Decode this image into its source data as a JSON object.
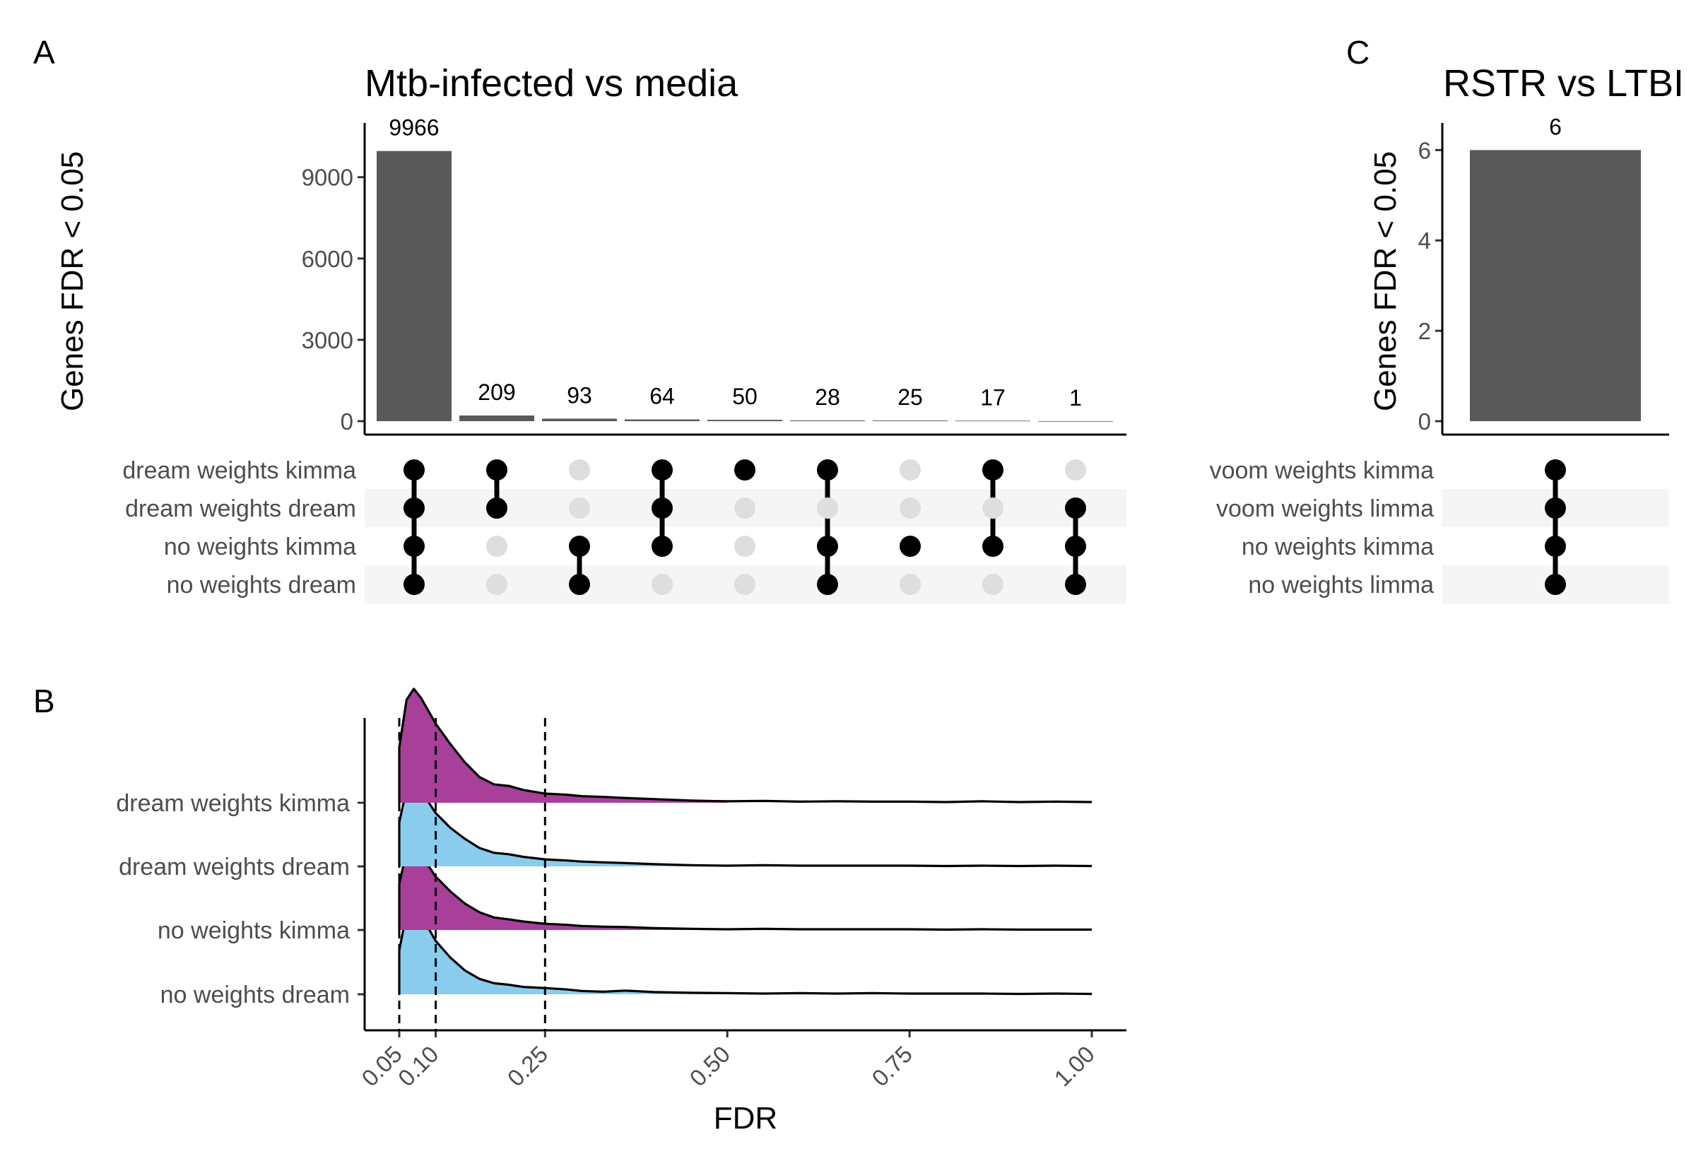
{
  "panels": {
    "A": {
      "letter": "A",
      "title": "Mtb-infected vs media",
      "ylabel": "Genes FDR < 0.05",
      "y_ticks": [
        "0",
        "3000",
        "6000",
        "9000"
      ],
      "sets": [
        "dream weights kimma",
        "dream weights dream",
        "no weights kimma",
        "no weights dream"
      ]
    },
    "B": {
      "letter": "B",
      "xlabel": "FDR",
      "x_ticks": [
        "0.05",
        "0.10",
        "0.25",
        "0.50",
        "0.75",
        "1.00"
      ],
      "groups": [
        "dream weights kimma",
        "dream weights dream",
        "no weights kimma",
        "no weights dream"
      ]
    },
    "C": {
      "letter": "C",
      "title": "RSTR vs LTBI",
      "ylabel": "Genes FDR < 0.05",
      "y_ticks": [
        "0",
        "2",
        "4",
        "6"
      ],
      "sets": [
        "voom weights kimma",
        "voom weights limma",
        "no weights kimma",
        "no weights limma"
      ]
    }
  },
  "colors": {
    "bar": "#595959",
    "dot_on": "#000000",
    "dot_off": "#dedede",
    "stripe": "#f5f5f5",
    "purple": "#a8409a",
    "blue": "#89ccee"
  },
  "chart_data": [
    {
      "type": "bar",
      "subtype": "upset",
      "title": "Mtb-infected vs media",
      "ylabel": "Genes FDR < 0.05",
      "ylim": [
        0,
        11000
      ],
      "y_ticks": [
        0,
        3000,
        6000,
        9000
      ],
      "sets": [
        "dream weights kimma",
        "dream weights dream",
        "no weights kimma",
        "no weights dream"
      ],
      "intersections": [
        {
          "value": 9966,
          "members": [
            1,
            1,
            1,
            1
          ]
        },
        {
          "value": 209,
          "members": [
            1,
            1,
            0,
            0
          ]
        },
        {
          "value": 93,
          "members": [
            0,
            0,
            1,
            1
          ]
        },
        {
          "value": 64,
          "members": [
            1,
            1,
            1,
            0
          ]
        },
        {
          "value": 50,
          "members": [
            1,
            0,
            0,
            0
          ]
        },
        {
          "value": 28,
          "members": [
            1,
            0,
            1,
            1
          ]
        },
        {
          "value": 25,
          "members": [
            0,
            0,
            1,
            0
          ]
        },
        {
          "value": 17,
          "members": [
            1,
            0,
            1,
            0
          ]
        },
        {
          "value": 1,
          "members": [
            0,
            1,
            1,
            1
          ]
        }
      ]
    },
    {
      "type": "area",
      "subtype": "ridgeline",
      "xlabel": "FDR",
      "xlim": [
        0,
        1
      ],
      "x_ticks": [
        0.05,
        0.1,
        0.25,
        0.5,
        0.75,
        1.0
      ],
      "vlines": [
        0.05,
        0.1,
        0.25
      ],
      "fill_range": [
        0.05,
        0.5
      ],
      "series": [
        {
          "name": "dream weights kimma",
          "fill": "purple",
          "density_x": [
            0.05,
            0.06,
            0.07,
            0.08,
            0.09,
            0.1,
            0.12,
            0.14,
            0.16,
            0.18,
            0.2,
            0.22,
            0.25,
            0.28,
            0.3,
            0.33,
            0.36,
            0.4,
            0.45,
            0.5,
            0.55,
            0.6,
            0.65,
            0.7,
            0.75,
            0.8,
            0.85,
            0.9,
            0.95,
            1.0
          ],
          "density_y": [
            1.5,
            2.8,
            3.1,
            2.85,
            2.5,
            2.15,
            1.6,
            1.1,
            0.7,
            0.5,
            0.46,
            0.35,
            0.25,
            0.22,
            0.18,
            0.16,
            0.13,
            0.1,
            0.06,
            0.04,
            0.05,
            0.03,
            0.04,
            0.03,
            0.03,
            0.02,
            0.04,
            0.02,
            0.03,
            0.02
          ]
        },
        {
          "name": "dream weights dream",
          "fill": "blue",
          "density_x": [
            0.05,
            0.06,
            0.07,
            0.08,
            0.09,
            0.1,
            0.12,
            0.14,
            0.16,
            0.18,
            0.2,
            0.22,
            0.25,
            0.28,
            0.3,
            0.33,
            0.36,
            0.4,
            0.45,
            0.5,
            0.55,
            0.6,
            0.65,
            0.7,
            0.75,
            0.8,
            0.85,
            0.9,
            0.95,
            1.0
          ],
          "density_y": [
            1.2,
            2.1,
            2.35,
            2.05,
            1.75,
            1.45,
            1.05,
            0.75,
            0.5,
            0.37,
            0.33,
            0.26,
            0.19,
            0.16,
            0.13,
            0.11,
            0.09,
            0.06,
            0.03,
            0.02,
            0.03,
            0.02,
            0.02,
            0.02,
            0.02,
            0.01,
            0.02,
            0.01,
            0.02,
            0.01
          ]
        },
        {
          "name": "no weights kimma",
          "fill": "purple",
          "density_x": [
            0.05,
            0.06,
            0.07,
            0.08,
            0.09,
            0.1,
            0.12,
            0.14,
            0.16,
            0.18,
            0.2,
            0.22,
            0.25,
            0.28,
            0.3,
            0.33,
            0.36,
            0.4,
            0.45,
            0.5,
            0.55,
            0.6,
            0.65,
            0.7,
            0.75,
            0.8,
            0.85,
            0.9,
            0.95,
            1.0
          ],
          "density_y": [
            1.25,
            2.15,
            2.4,
            2.1,
            1.75,
            1.45,
            1.05,
            0.72,
            0.48,
            0.34,
            0.29,
            0.23,
            0.17,
            0.14,
            0.11,
            0.09,
            0.08,
            0.05,
            0.03,
            0.02,
            0.03,
            0.02,
            0.02,
            0.02,
            0.02,
            0.01,
            0.02,
            0.01,
            0.01,
            0.01
          ]
        },
        {
          "name": "no weights dream",
          "fill": "blue",
          "density_x": [
            0.05,
            0.06,
            0.07,
            0.08,
            0.09,
            0.1,
            0.12,
            0.14,
            0.16,
            0.18,
            0.2,
            0.22,
            0.25,
            0.28,
            0.3,
            0.33,
            0.36,
            0.4,
            0.45,
            0.5,
            0.55,
            0.6,
            0.65,
            0.7,
            0.75,
            0.8,
            0.85,
            0.9,
            0.95,
            1.0
          ],
          "density_y": [
            1.2,
            2.2,
            2.45,
            2.15,
            1.8,
            1.45,
            1.0,
            0.65,
            0.42,
            0.3,
            0.26,
            0.2,
            0.17,
            0.13,
            0.09,
            0.07,
            0.1,
            0.06,
            0.04,
            0.03,
            0.02,
            0.03,
            0.02,
            0.03,
            0.02,
            0.02,
            0.02,
            0.01,
            0.02,
            0.01
          ]
        }
      ]
    },
    {
      "type": "bar",
      "subtype": "upset",
      "title": "RSTR vs LTBI",
      "ylabel": "Genes FDR < 0.05",
      "ylim": [
        0,
        6.6
      ],
      "y_ticks": [
        0,
        2,
        4,
        6
      ],
      "sets": [
        "voom weights kimma",
        "voom weights limma",
        "no weights kimma",
        "no weights limma"
      ],
      "intersections": [
        {
          "value": 6,
          "members": [
            1,
            1,
            1,
            1
          ]
        }
      ]
    }
  ]
}
